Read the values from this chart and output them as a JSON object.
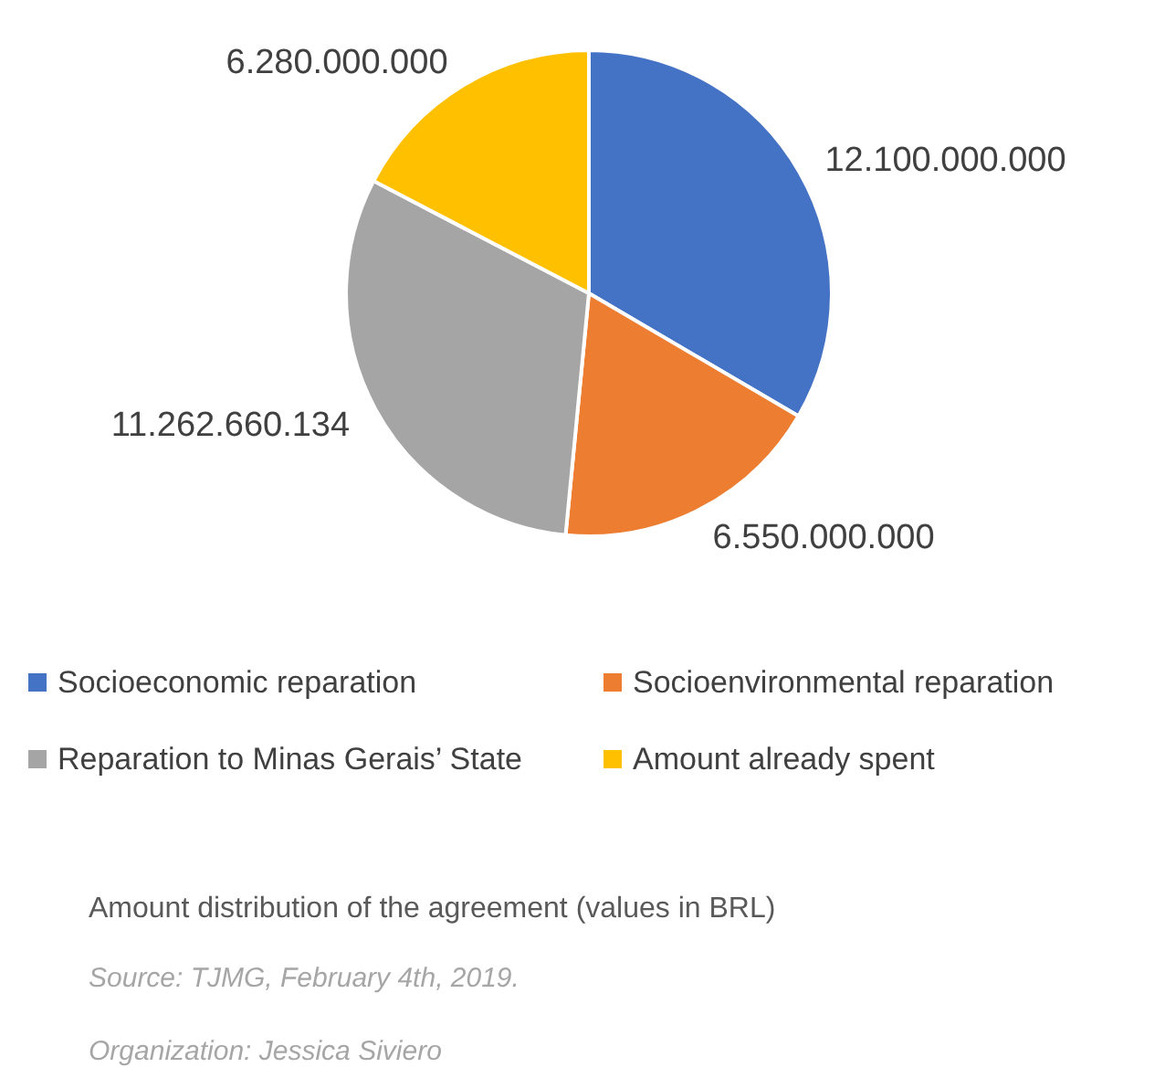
{
  "chart_data": {
    "type": "pie",
    "categories": [
      "Socioeconomic reparation",
      "Socioenvironmental reparation",
      "Reparation to Minas Gerais’ State",
      "Amount already spent"
    ],
    "values": [
      12100000000,
      6550000000,
      11262660134,
      6280000000
    ],
    "value_labels": [
      "12.100.000.000",
      "6.550.000.000",
      "11.262.660.134",
      "6.280.000.000"
    ],
    "colors": [
      "#4472c4",
      "#ed7d31",
      "#a5a5a5",
      "#ffc000"
    ],
    "legend": "bottom",
    "annotations": [
      "Amount distribution of the agreement (values in BRL)",
      "Source: TJMG, February 4th, 2019.",
      "Organization: Jessica Siviero"
    ]
  }
}
